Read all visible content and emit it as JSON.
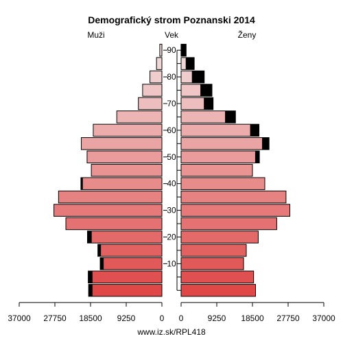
{
  "chart_data": {
    "type": "bar",
    "title": "Demografický strom Poznanski 2014",
    "left_label": "Muži",
    "center_label": "Vek",
    "right_label": "Ženy",
    "footer": "www.iz.sk/RPL418",
    "age_groups": [
      "0-4",
      "5-9",
      "10-14",
      "15-19",
      "20-24",
      "25-29",
      "30-34",
      "35-39",
      "40-44",
      "45-49",
      "50-54",
      "55-59",
      "60-64",
      "65-69",
      "70-74",
      "75-79",
      "80-84",
      "85-89",
      "90+"
    ],
    "age_tick_labels": [
      "10",
      "20",
      "30",
      "40",
      "50",
      "60",
      "70",
      "80",
      "90"
    ],
    "x_tick_labels_left": [
      "37000",
      "27750",
      "18500",
      "9250",
      "0"
    ],
    "x_tick_labels_right": [
      "0",
      "9250",
      "18500",
      "27750",
      "37000"
    ],
    "xlim": [
      0,
      37000
    ],
    "series": [
      {
        "name": "Muži",
        "values": [
          19000,
          19100,
          16000,
          16600,
          19300,
          24900,
          28000,
          26800,
          21000,
          18300,
          19400,
          20900,
          17800,
          11700,
          6100,
          5000,
          3100,
          1400,
          550
        ]
      },
      {
        "name": "Ženy",
        "values": [
          19300,
          18800,
          16200,
          16900,
          20000,
          24800,
          28200,
          27200,
          21700,
          18500,
          20300,
          22800,
          20200,
          14100,
          8300,
          8000,
          6000,
          3400,
          1300
        ]
      }
    ],
    "surplus_men": [
      1000,
      1100,
      900,
      800,
      1100,
      0,
      0,
      0,
      500,
      0,
      0,
      0,
      0,
      0,
      0,
      0,
      0,
      0,
      0
    ],
    "surplus_women": [
      0,
      0,
      0,
      0,
      0,
      0,
      0,
      0,
      0,
      0,
      1100,
      1800,
      2300,
      2700,
      2400,
      3000,
      3200,
      2200,
      1400
    ],
    "colors": {
      "young": "#e04848",
      "old": "#f2dede",
      "surplus": "#000000",
      "stroke": "#000000"
    }
  }
}
